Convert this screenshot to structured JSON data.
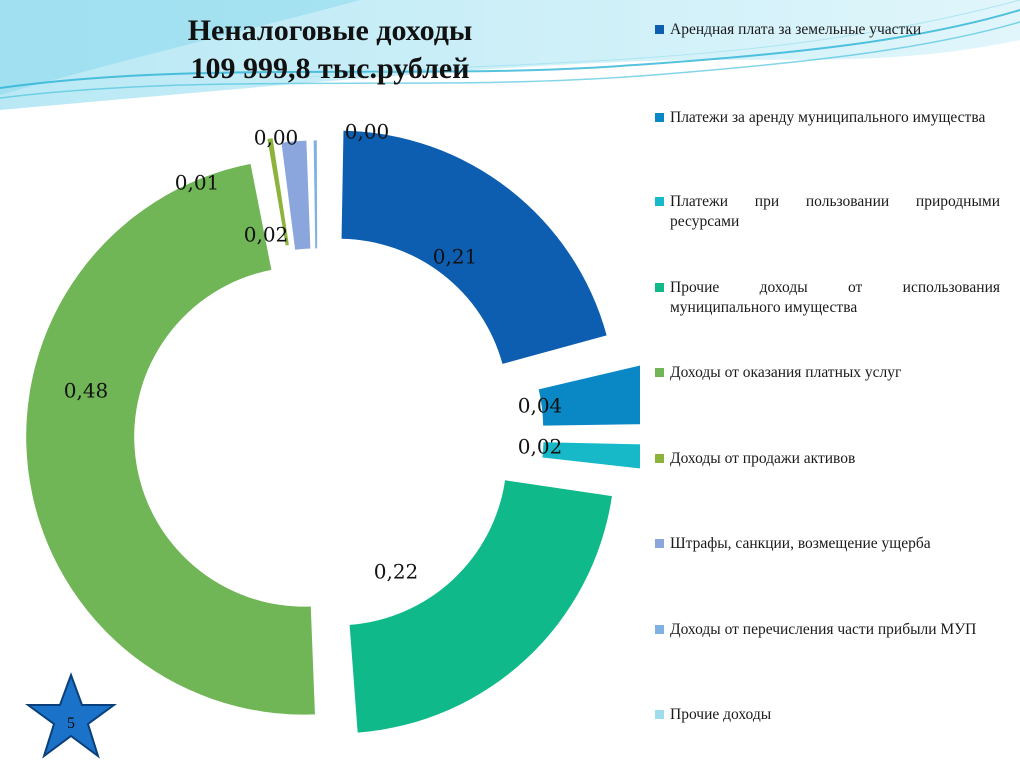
{
  "slide": {
    "title_line1": "Неналоговые доходы",
    "title_line2": "109 999,8 тыс.рублей",
    "page_number": "5"
  },
  "legend": [
    {
      "label": "Арендная плата за земельные участки",
      "color": "#0d5eb0"
    },
    {
      "label": "Платежи за аренду муниципального имущества",
      "color": "#0a87c5"
    },
    {
      "label": "Платежи при пользовании природными ресурсами",
      "color": "#17b9c9"
    },
    {
      "label": "Прочие доходы от использования муниципального имущества",
      "color": "#0fb98a"
    },
    {
      "label": "Доходы от оказания платных услуг",
      "color": "#70b556"
    },
    {
      "label": "Доходы от продажи активов",
      "color": "#8db33d"
    },
    {
      "label": "Штрафы, санкции, возмещение ущерба",
      "color": "#8aa6dc"
    },
    {
      "label": "Доходы от перечисления части прибыли МУП",
      "color": "#7fb2e3"
    },
    {
      "label": "Прочие доходы",
      "color": "#9fdcec"
    }
  ],
  "chart_data": {
    "type": "pie",
    "variant": "exploded-doughnut",
    "categories": [
      "Арендная плата за земельные участки",
      "Платежи за аренду муниципального имущества",
      "Платежи при пользовании природными ресурсами",
      "Прочие доходы от использования муниципального имущества",
      "Доходы от оказания платных услуг",
      "Доходы от продажи активов",
      "Штрафы, санкции, возмещение ущерба",
      "Доходы от перечисления части прибыли МУП",
      "Прочие доходы"
    ],
    "values": [
      0.21,
      0.04,
      0.02,
      0.22,
      0.48,
      0.005,
      0.02,
      0.003,
      0.0
    ],
    "data_labels": [
      "0,21",
      "0,04",
      "0,02",
      "0,22",
      "0,48",
      "0,01",
      "0,02",
      "0,00",
      "0,00"
    ],
    "colors": [
      "#0d5eb0",
      "#0a87c5",
      "#17b9c9",
      "#0fb98a",
      "#70b556",
      "#8db33d",
      "#8aa6dc",
      "#7fb2e3",
      "#9fdcec"
    ],
    "legend_position": "right"
  }
}
